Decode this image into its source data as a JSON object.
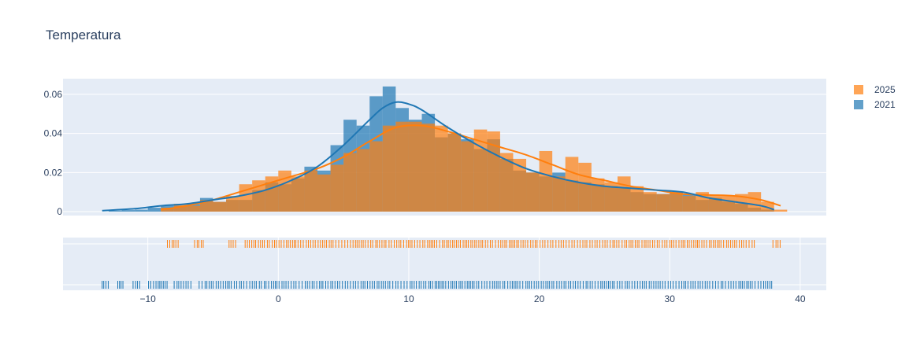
{
  "chart_data": {
    "type": "histogram",
    "title": "Temperatura",
    "xlim": [
      -16.5,
      42
    ],
    "ylim": [
      -0.002,
      0.068
    ],
    "y_ticks": [
      0,
      0.02,
      0.04,
      0.06
    ],
    "y_tick_labels": [
      "0",
      "0.02",
      "0.04",
      "0.06"
    ],
    "x_ticks": [
      -10,
      0,
      10,
      20,
      30,
      40
    ],
    "x_tick_labels": [
      "−10",
      "0",
      "10",
      "20",
      "30",
      "40"
    ],
    "grid": true,
    "legend_position": "top-right",
    "bin_width": 1,
    "series": [
      {
        "name": "2025",
        "color": "#ff7f0e",
        "bin_starts": [
          -9,
          -8,
          -7,
          -6,
          -5,
          -4,
          -3,
          -2,
          -1,
          0,
          1,
          2,
          3,
          4,
          5,
          6,
          7,
          8,
          9,
          10,
          11,
          12,
          13,
          14,
          15,
          16,
          17,
          18,
          19,
          20,
          21,
          22,
          23,
          24,
          25,
          26,
          27,
          28,
          29,
          30,
          31,
          32,
          33,
          34,
          35,
          36,
          37,
          38
        ],
        "values": [
          0.002,
          0.004,
          0.003,
          0.006,
          0.005,
          0.008,
          0.014,
          0.016,
          0.018,
          0.021,
          0.018,
          0.021,
          0.019,
          0.024,
          0.03,
          0.032,
          0.036,
          0.044,
          0.046,
          0.046,
          0.045,
          0.044,
          0.04,
          0.036,
          0.042,
          0.041,
          0.03,
          0.027,
          0.02,
          0.031,
          0.018,
          0.028,
          0.025,
          0.017,
          0.015,
          0.018,
          0.013,
          0.01,
          0.009,
          0.01,
          0.008,
          0.01,
          0.008,
          0.008,
          0.009,
          0.01,
          0.005,
          0.001
        ],
        "kde_x": [
          -9,
          -7,
          -5,
          -3,
          -1,
          1,
          3,
          5,
          7,
          9,
          11,
          13,
          15,
          17,
          19,
          21,
          23,
          25,
          27,
          29,
          31,
          33,
          35,
          37,
          38.5
        ],
        "kde_y": [
          0.001,
          0.003,
          0.006,
          0.01,
          0.014,
          0.018,
          0.022,
          0.028,
          0.036,
          0.043,
          0.044,
          0.041,
          0.037,
          0.033,
          0.029,
          0.024,
          0.019,
          0.016,
          0.013,
          0.011,
          0.009,
          0.0085,
          0.008,
          0.006,
          0.003
        ],
        "rug": {
          "range": [
            -8.5,
            38.5
          ],
          "gaps": [
            [
              -7.5,
              -6.6
            ],
            [
              -5.6,
              -3.8
            ],
            [
              -3.2,
              -2.6
            ],
            [
              36.5,
              37.8
            ]
          ]
        }
      },
      {
        "name": "2021",
        "color": "#1f77b4",
        "bin_starts": [
          -13,
          -12,
          -11,
          -10,
          -9,
          -8,
          -7,
          -6,
          -5,
          -4,
          -3,
          -2,
          -1,
          0,
          1,
          2,
          3,
          4,
          5,
          6,
          7,
          8,
          9,
          10,
          11,
          12,
          13,
          14,
          15,
          16,
          17,
          18,
          19,
          20,
          21,
          22,
          23,
          24,
          25,
          26,
          27,
          28,
          29,
          30,
          31,
          32,
          33,
          34,
          35,
          36,
          37
        ],
        "values": [
          0.0005,
          0.0008,
          0.001,
          0.002,
          0.003,
          0.003,
          0.004,
          0.007,
          0.005,
          0.006,
          0.006,
          0.011,
          0.015,
          0.014,
          0.017,
          0.023,
          0.021,
          0.034,
          0.047,
          0.044,
          0.059,
          0.064,
          0.053,
          0.047,
          0.05,
          0.038,
          0.04,
          0.037,
          0.032,
          0.037,
          0.027,
          0.021,
          0.02,
          0.018,
          0.02,
          0.016,
          0.015,
          0.014,
          0.013,
          0.012,
          0.01,
          0.009,
          0.009,
          0.01,
          0.009,
          0.006,
          0.007,
          0.005,
          0.004,
          0.002,
          0.001
        ],
        "kde_x": [
          -13.5,
          -11,
          -9,
          -7,
          -5,
          -3,
          -1,
          1,
          3,
          5,
          7,
          8,
          9,
          10,
          11,
          13,
          15,
          17,
          19,
          21,
          23,
          25,
          27,
          29,
          31,
          33,
          35,
          37,
          38
        ],
        "kde_y": [
          0.0005,
          0.0015,
          0.003,
          0.004,
          0.006,
          0.008,
          0.011,
          0.016,
          0.023,
          0.034,
          0.047,
          0.053,
          0.056,
          0.055,
          0.052,
          0.043,
          0.035,
          0.028,
          0.022,
          0.018,
          0.015,
          0.013,
          0.012,
          0.011,
          0.01,
          0.007,
          0.005,
          0.003,
          0.001
        ],
        "rug": {
          "range": [
            -13.5,
            38
          ],
          "gaps": [
            [
              -13.0,
              -12.4
            ],
            [
              -11.8,
              -11.2
            ],
            [
              -10.6,
              -10.0
            ],
            [
              -8.5,
              -8.0
            ],
            [
              -6.5,
              -6.1
            ]
          ]
        }
      }
    ]
  },
  "legend": {
    "items": [
      {
        "label": "2025",
        "color": "#ff7f0e"
      },
      {
        "label": "2021",
        "color": "#1f77b4"
      }
    ]
  },
  "colors": {
    "plot_bg": "#e5ecf6",
    "grid": "#ffffff",
    "text": "#2a3f5f"
  }
}
